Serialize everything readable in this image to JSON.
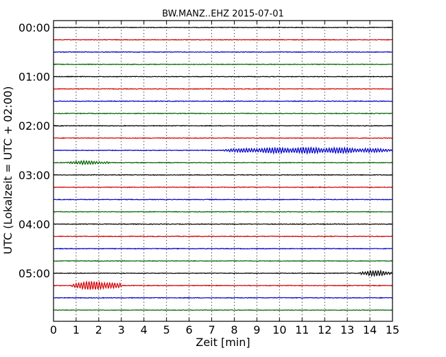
{
  "chart_data": {
    "type": "line",
    "title": "BW.MANZ..EHZ 2015-07-01",
    "xlabel": "Zeit  [min]",
    "ylabel": "UTC (Lokalzeit = UTC + 02:00)",
    "xlim": [
      0,
      15
    ],
    "x_ticks": [
      "0",
      "1",
      "2",
      "3",
      "4",
      "5",
      "6",
      "7",
      "8",
      "9",
      "10",
      "11",
      "12",
      "13",
      "14",
      "15"
    ],
    "y_ticks": [
      "00:00",
      "01:00",
      "02:00",
      "03:00",
      "04:00",
      "05:00"
    ],
    "grid": "vertical dotted",
    "trace_colors": [
      "#000000",
      "#d40000",
      "#0000cc",
      "#006400"
    ],
    "traces": [
      {
        "start": "00:00",
        "color": "#000000",
        "events": []
      },
      {
        "start": "00:15",
        "color": "#d40000",
        "events": []
      },
      {
        "start": "00:30",
        "color": "#0000cc",
        "events": []
      },
      {
        "start": "00:45",
        "color": "#006400",
        "events": []
      },
      {
        "start": "01:00",
        "color": "#000000",
        "events": []
      },
      {
        "start": "01:15",
        "color": "#d40000",
        "events": []
      },
      {
        "start": "01:30",
        "color": "#0000cc",
        "events": []
      },
      {
        "start": "01:45",
        "color": "#006400",
        "events": []
      },
      {
        "start": "02:00",
        "color": "#000000",
        "events": []
      },
      {
        "start": "02:15",
        "color": "#d40000",
        "events": []
      },
      {
        "start": "02:30",
        "color": "#0000cc",
        "events": [
          {
            "from": 7.5,
            "to": 15.0,
            "amp": 0.3
          }
        ]
      },
      {
        "start": "02:45",
        "color": "#006400",
        "events": [
          {
            "from": 0.6,
            "to": 2.5,
            "amp": 0.18
          }
        ]
      },
      {
        "start": "03:00",
        "color": "#000000",
        "events": []
      },
      {
        "start": "03:15",
        "color": "#d40000",
        "events": []
      },
      {
        "start": "03:30",
        "color": "#0000cc",
        "events": []
      },
      {
        "start": "03:45",
        "color": "#006400",
        "events": []
      },
      {
        "start": "04:00",
        "color": "#000000",
        "events": []
      },
      {
        "start": "04:15",
        "color": "#d40000",
        "events": []
      },
      {
        "start": "04:30",
        "color": "#0000cc",
        "events": []
      },
      {
        "start": "04:45",
        "color": "#006400",
        "events": []
      },
      {
        "start": "05:00",
        "color": "#000000",
        "events": [
          {
            "from": 13.5,
            "to": 15.0,
            "amp": 0.25
          }
        ]
      },
      {
        "start": "05:15",
        "color": "#d40000",
        "events": [
          {
            "from": 0.8,
            "to": 3.0,
            "amp": 0.45
          }
        ]
      },
      {
        "start": "05:30",
        "color": "#0000cc",
        "events": []
      },
      {
        "start": "05:45",
        "color": "#006400",
        "events": []
      }
    ]
  }
}
